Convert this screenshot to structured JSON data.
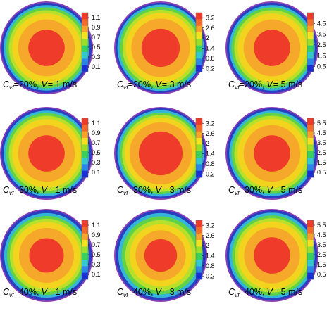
{
  "chart_data": [
    {
      "type": "heatmap",
      "cvf_label": "C",
      "cvf_sub": "vf",
      "cvf_value": "=20%,",
      "v_label": "V",
      "v_value": "= 1 m/s",
      "colorbar": {
        "ticks": [
          "1.1",
          "0.9",
          "0.7",
          "0.5",
          "0.3",
          "0.1"
        ],
        "min": 0.0,
        "max": 1.2
      },
      "rings": [
        0.98,
        0.93,
        0.88,
        0.82,
        0.75,
        0.62,
        0.4,
        0.0
      ]
    },
    {
      "type": "heatmap",
      "cvf_label": "C",
      "cvf_sub": "vf",
      "cvf_value": "=20%,",
      "v_label": "V",
      "v_value": "= 3 m/s",
      "colorbar": {
        "ticks": [
          "3.2",
          "2.6",
          "2",
          "1.4",
          "0.8",
          "0.2"
        ],
        "min": 0.0,
        "max": 3.5
      },
      "rings": [
        0.98,
        0.94,
        0.89,
        0.83,
        0.76,
        0.64,
        0.42,
        0.0
      ]
    },
    {
      "type": "heatmap",
      "cvf_label": "C",
      "cvf_sub": "vf",
      "cvf_value": "=20%,",
      "v_label": "V",
      "v_value": "= 5 m/s",
      "colorbar": {
        "ticks": [
          "4.5",
          "3.5",
          "2.5",
          "1.5",
          "0.5"
        ],
        "min": 0.0,
        "max": 5.5
      },
      "rings": [
        0.98,
        0.93,
        0.88,
        0.82,
        0.75,
        0.62,
        0.4,
        0.0
      ]
    },
    {
      "type": "heatmap",
      "cvf_label": "C",
      "cvf_sub": "vf",
      "cvf_value": "=30%,",
      "v_label": "V",
      "v_value": "= 1 m/s",
      "colorbar": {
        "ticks": [
          "1.1",
          "0.9",
          "0.7",
          "0.5",
          "0.3",
          "0.1"
        ],
        "min": 0.0,
        "max": 1.2
      },
      "rings": [
        0.98,
        0.93,
        0.88,
        0.82,
        0.75,
        0.62,
        0.4,
        0.0
      ]
    },
    {
      "type": "heatmap",
      "cvf_label": "C",
      "cvf_sub": "vf",
      "cvf_value": "=30%,",
      "v_label": "V",
      "v_value": "= 3 m/s",
      "colorbar": {
        "ticks": [
          "3.2",
          "2.6",
          "2",
          "1.4",
          "0.8",
          "0.2"
        ],
        "min": 0.0,
        "max": 3.5
      },
      "rings": [
        0.98,
        0.94,
        0.89,
        0.84,
        0.78,
        0.68,
        0.48,
        0.0
      ]
    },
    {
      "type": "heatmap",
      "cvf_label": "C",
      "cvf_sub": "vf",
      "cvf_value": "=30%,",
      "v_label": "V",
      "v_value": "= 5 m/s",
      "colorbar": {
        "ticks": [
          "5.5",
          "4.5",
          "3.5",
          "2.5",
          "1.5",
          "0.5"
        ],
        "min": 0.0,
        "max": 6.0
      },
      "rings": [
        0.98,
        0.93,
        0.88,
        0.82,
        0.75,
        0.62,
        0.4,
        0.0
      ]
    },
    {
      "type": "heatmap",
      "cvf_label": "C",
      "cvf_sub": "vf",
      "cvf_value": "=40%,",
      "v_label": "V",
      "v_value": "= 1 m/s",
      "colorbar": {
        "ticks": [
          "1.1",
          "0.9",
          "0.7",
          "0.5",
          "0.3",
          "0.1"
        ],
        "min": 0.0,
        "max": 1.2
      },
      "rings": [
        0.98,
        0.92,
        0.86,
        0.8,
        0.73,
        0.6,
        0.38,
        0.0
      ]
    },
    {
      "type": "heatmap",
      "cvf_label": "C",
      "cvf_sub": "vf",
      "cvf_value": "=40%,",
      "v_label": "V",
      "v_value": "= 3 m/s",
      "colorbar": {
        "ticks": [
          "3.2",
          "2.6",
          "2",
          "1.4",
          "0.8",
          "0.2"
        ],
        "min": 0.0,
        "max": 3.5
      },
      "rings": [
        0.98,
        0.92,
        0.85,
        0.77,
        0.68,
        0.55,
        0.36,
        0.0
      ]
    },
    {
      "type": "heatmap",
      "cvf_label": "C",
      "cvf_sub": "vf",
      "cvf_value": "=40%,",
      "v_label": "V",
      "v_value": "= 5 m/s",
      "colorbar": {
        "ticks": [
          "5.5",
          "4.5",
          "3.5",
          "2.5",
          "1.5",
          "0.5"
        ],
        "min": 0.0,
        "max": 6.0
      },
      "rings": [
        0.98,
        0.93,
        0.87,
        0.81,
        0.74,
        0.61,
        0.4,
        0.0
      ]
    }
  ],
  "colormap": [
    "#1a2fd6",
    "#2a86e8",
    "#33c7cf",
    "#3ad05c",
    "#9ae02a",
    "#f2e21f",
    "#f6a32a",
    "#f26b2c",
    "#ef3b2a"
  ],
  "ring_colors": [
    "#2a3fc0",
    "#33b6d8",
    "#5fd24a",
    "#b8e02a",
    "#f2d41f",
    "#f6a82a",
    "#f4772c",
    "#ef3b2a"
  ],
  "outer_ring_color": "#8a3fb8"
}
